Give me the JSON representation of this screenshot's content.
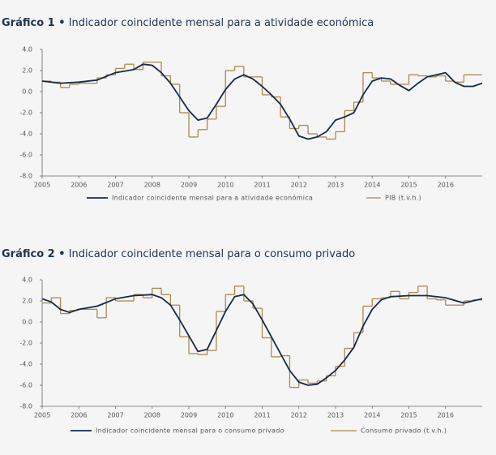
{
  "chart_data": [
    {
      "type": "line",
      "label": "Gráfico 1 •",
      "title": "Indicador coincidente mensal para a atividade económica",
      "xlim": [
        2005,
        2017
      ],
      "xticks": [
        2005,
        2006,
        2007,
        2008,
        2009,
        2010,
        2011,
        2012,
        2013,
        2014,
        2015,
        2016
      ],
      "ylim": [
        -8,
        4
      ],
      "yticks": [
        {
          "value": -8,
          "label": "-8.0"
        },
        {
          "value": -6,
          "label": "-6.0"
        },
        {
          "value": -4,
          "label": "-4.0"
        },
        {
          "value": -2,
          "label": "-2.0"
        },
        {
          "value": 0,
          "label": "0.0"
        },
        {
          "value": 2,
          "label": "2.0"
        },
        {
          "value": 4,
          "label": "4.0"
        }
      ],
      "grid": false,
      "legend": "bottom",
      "series": [
        {
          "name": "Indicador coincidente mensal para a atividade económica",
          "color": "#17294a",
          "step": false,
          "x": [
            2005,
            2005.5,
            2006,
            2006.5,
            2007,
            2007.5,
            2007.75,
            2008,
            2008.25,
            2008.5,
            2008.75,
            2009,
            2009.25,
            2009.5,
            2009.75,
            2010,
            2010.25,
            2010.5,
            2010.75,
            2011,
            2011.25,
            2011.5,
            2011.75,
            2012,
            2012.25,
            2012.5,
            2012.75,
            2013,
            2013.25,
            2013.5,
            2013.75,
            2014,
            2014.25,
            2014.5,
            2014.75,
            2015,
            2015.25,
            2015.5,
            2015.75,
            2016,
            2016.25,
            2016.5,
            2016.75,
            2017
          ],
          "values": [
            1.0,
            0.8,
            0.9,
            1.1,
            1.8,
            2.1,
            2.6,
            2.5,
            1.8,
            0.8,
            -0.5,
            -1.8,
            -2.7,
            -2.5,
            -1.2,
            0.2,
            1.2,
            1.6,
            1.2,
            0.5,
            -0.3,
            -1.2,
            -2.6,
            -4.2,
            -4.5,
            -4.3,
            -3.8,
            -2.7,
            -2.4,
            -2.0,
            -0.3,
            1.0,
            1.3,
            1.2,
            0.6,
            0.1,
            0.8,
            1.4,
            1.6,
            1.8,
            0.9,
            0.5,
            0.5,
            0.8
          ]
        },
        {
          "name": "PIB (t.v.h.)",
          "color": "#a88a4e",
          "step": true,
          "x": [
            2005,
            2005.25,
            2005.5,
            2005.75,
            2006,
            2006.25,
            2006.5,
            2006.75,
            2007,
            2007.25,
            2007.5,
            2007.75,
            2008,
            2008.25,
            2008.5,
            2008.75,
            2009,
            2009.25,
            2009.5,
            2009.75,
            2010,
            2010.25,
            2010.5,
            2010.75,
            2011,
            2011.25,
            2011.5,
            2011.75,
            2012,
            2012.25,
            2012.5,
            2012.75,
            2013,
            2013.25,
            2013.5,
            2013.75,
            2014,
            2014.25,
            2014.5,
            2014.75,
            2015,
            2015.25,
            2015.5,
            2015.75,
            2016,
            2016.25,
            2016.5,
            2016.75
          ],
          "values": [
            1.0,
            0.9,
            0.4,
            0.7,
            0.8,
            0.8,
            1.3,
            1.6,
            2.2,
            2.6,
            2.1,
            2.8,
            2.8,
            1.5,
            0.7,
            -2.0,
            -4.3,
            -3.6,
            -2.6,
            -1.4,
            2.0,
            2.4,
            1.4,
            1.4,
            -0.3,
            -0.5,
            -2.4,
            -3.5,
            -3.2,
            -4.0,
            -4.3,
            -4.5,
            -3.8,
            -1.8,
            -1.0,
            1.8,
            1.3,
            1.0,
            0.7,
            0.7,
            1.6,
            1.5,
            1.4,
            1.5,
            1.0,
            0.9,
            1.6,
            1.6
          ]
        }
      ]
    },
    {
      "type": "line",
      "label": "Gráfico 2 •",
      "title": "Indicador coincidente mensal para o consumo privado",
      "xlim": [
        2005,
        2017
      ],
      "xticks": [
        2005,
        2006,
        2007,
        2008,
        2009,
        2010,
        2011,
        2012,
        2013,
        2014,
        2015,
        2016
      ],
      "ylim": [
        -8,
        4
      ],
      "yticks": [
        {
          "value": -8,
          "label": "-8.0"
        },
        {
          "value": -6,
          "label": "-6.0"
        },
        {
          "value": -4,
          "label": "-4.0"
        },
        {
          "value": -2,
          "label": "-2.0"
        },
        {
          "value": 0,
          "label": "0.0"
        },
        {
          "value": 2,
          "label": "2.0"
        },
        {
          "value": 4,
          "label": "4.0"
        }
      ],
      "grid": false,
      "legend": "bottom",
      "series": [
        {
          "name": "Indicador coincidente mensal para o consumo privado",
          "color": "#17294a",
          "step": false,
          "x": [
            2005,
            2005.25,
            2005.5,
            2005.75,
            2006,
            2006.5,
            2007,
            2007.5,
            2008,
            2008.25,
            2008.5,
            2008.75,
            2009,
            2009.25,
            2009.5,
            2009.75,
            2010,
            2010.25,
            2010.5,
            2010.75,
            2011,
            2011.25,
            2011.5,
            2011.75,
            2012,
            2012.25,
            2012.5,
            2012.75,
            2013,
            2013.25,
            2013.5,
            2013.75,
            2014,
            2014.25,
            2014.5,
            2015,
            2015.5,
            2016,
            2016.5,
            2017
          ],
          "values": [
            2.2,
            1.9,
            1.2,
            0.9,
            1.2,
            1.5,
            2.2,
            2.5,
            2.6,
            2.3,
            1.6,
            0.2,
            -1.3,
            -2.8,
            -2.6,
            -0.8,
            1.0,
            2.4,
            2.6,
            1.7,
            0.2,
            -1.4,
            -3.0,
            -4.6,
            -5.7,
            -6.0,
            -5.9,
            -5.3,
            -4.6,
            -3.6,
            -2.4,
            -0.4,
            1.2,
            2.1,
            2.4,
            2.5,
            2.5,
            2.3,
            1.8,
            2.2
          ]
        },
        {
          "name": "Consumo privado (t.v.h.)",
          "color": "#a88a4e",
          "step": true,
          "x": [
            2005,
            2005.25,
            2005.5,
            2005.75,
            2006,
            2006.25,
            2006.5,
            2006.75,
            2007,
            2007.25,
            2007.5,
            2007.75,
            2008,
            2008.25,
            2008.5,
            2008.75,
            2009,
            2009.25,
            2009.5,
            2009.75,
            2010,
            2010.25,
            2010.5,
            2010.75,
            2011,
            2011.25,
            2011.5,
            2011.75,
            2012,
            2012.25,
            2012.5,
            2012.75,
            2013,
            2013.25,
            2013.5,
            2013.75,
            2014,
            2014.25,
            2014.5,
            2014.75,
            2015,
            2015.25,
            2015.5,
            2015.75,
            2016,
            2016.25,
            2016.5,
            2016.75
          ],
          "values": [
            1.8,
            2.3,
            0.8,
            1.1,
            1.2,
            1.2,
            0.4,
            2.3,
            2.0,
            2.0,
            2.6,
            2.3,
            3.2,
            2.6,
            1.6,
            -1.4,
            -3.0,
            -3.1,
            -2.7,
            1.0,
            2.6,
            3.4,
            2.0,
            1.3,
            -1.5,
            -3.3,
            -3.2,
            -6.2,
            -5.5,
            -5.8,
            -5.6,
            -5.1,
            -4.2,
            -2.5,
            -1.0,
            1.5,
            2.2,
            2.3,
            2.9,
            2.2,
            2.8,
            3.4,
            2.2,
            2.1,
            1.6,
            1.6,
            2.0,
            2.1
          ]
        }
      ]
    }
  ]
}
